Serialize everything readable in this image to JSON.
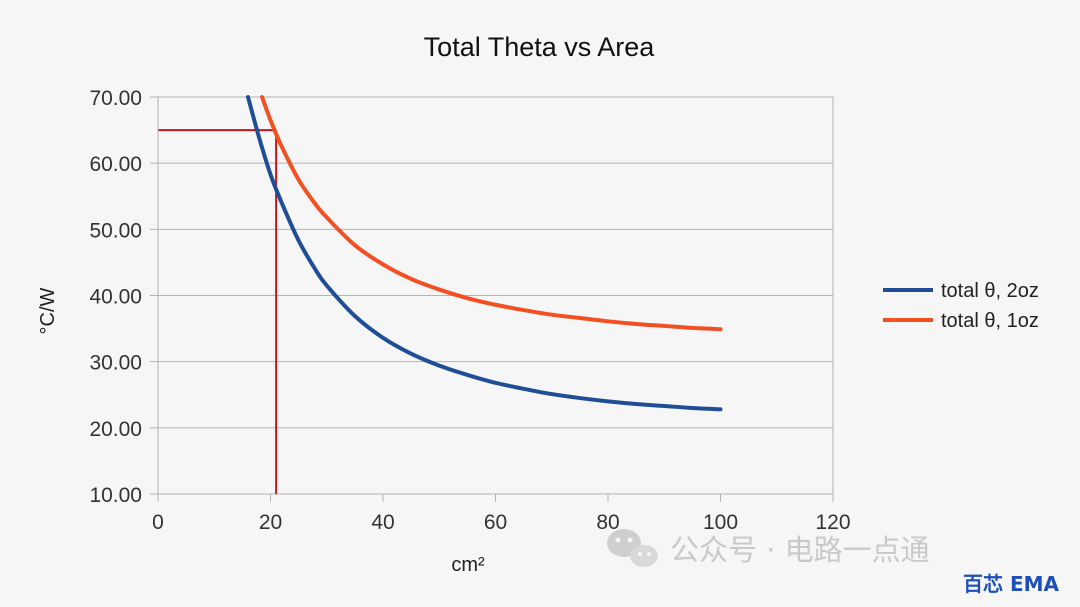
{
  "chart_data": {
    "type": "line",
    "title": "Total Theta vs Area",
    "xlabel": "cm²",
    "ylabel": "°C/W",
    "xlim": [
      0,
      120
    ],
    "ylim": [
      10,
      70
    ],
    "x_ticks": [
      "0",
      "20",
      "40",
      "60",
      "80",
      "100",
      "120"
    ],
    "y_ticks": [
      "10.00",
      "20.00",
      "30.00",
      "40.00",
      "50.00",
      "60.00",
      "70.00"
    ],
    "grid": "horizontal",
    "legend_position": "right",
    "series": [
      {
        "name": "total θ, 2oz",
        "color": "#1f4e96",
        "x": [
          16,
          18,
          20,
          22,
          25,
          28,
          30,
          35,
          40,
          45,
          50,
          55,
          60,
          65,
          70,
          75,
          80,
          85,
          90,
          95,
          100
        ],
        "y": [
          70.0,
          63.8,
          58.3,
          54.0,
          48.3,
          43.9,
          41.5,
          36.9,
          33.6,
          31.2,
          29.4,
          28.0,
          26.8,
          25.9,
          25.1,
          24.5,
          24.0,
          23.6,
          23.3,
          23.0,
          22.8
        ]
      },
      {
        "name": "total θ, 1oz",
        "color": "#f25022",
        "x": [
          18.5,
          20,
          22,
          25,
          28,
          30,
          35,
          40,
          45,
          50,
          55,
          60,
          65,
          70,
          75,
          80,
          85,
          90,
          95,
          100
        ],
        "y": [
          70.0,
          66.5,
          62.5,
          57.5,
          53.8,
          51.8,
          47.6,
          44.7,
          42.5,
          40.9,
          39.6,
          38.6,
          37.8,
          37.1,
          36.6,
          36.1,
          35.7,
          35.4,
          35.1,
          34.9
        ]
      }
    ],
    "annotation": {
      "color": "#c3151c",
      "x": 21,
      "y": 65
    }
  },
  "watermark": {
    "text": "公众号 · 电路一点通",
    "brand": "百芯 EMA"
  }
}
